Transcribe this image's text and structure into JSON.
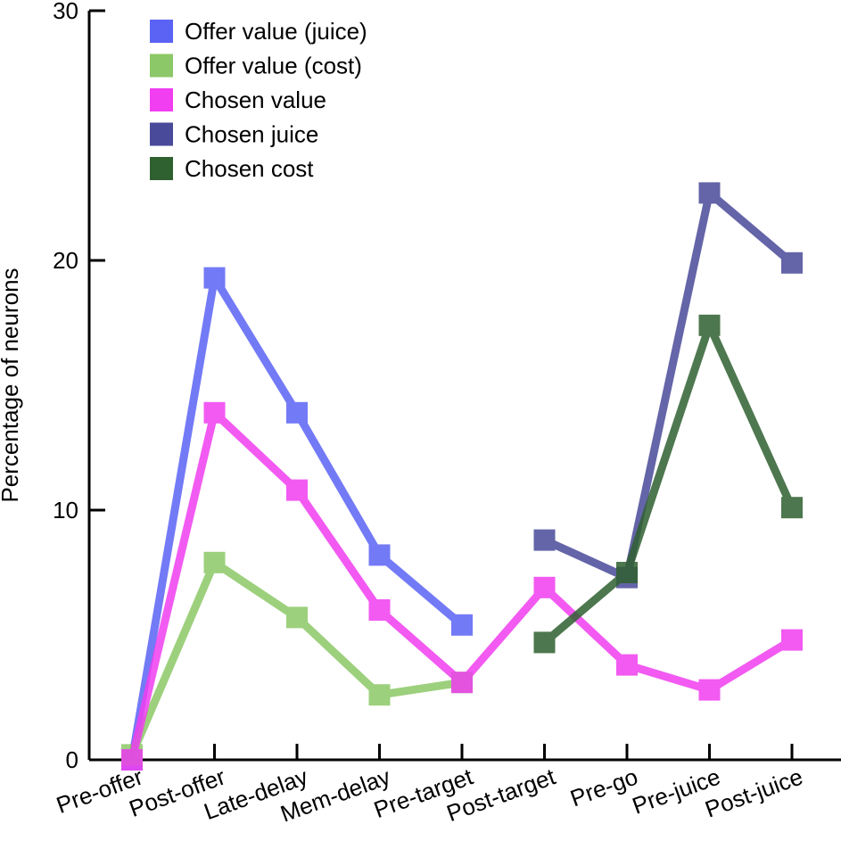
{
  "chart_data": {
    "type": "line",
    "title": "",
    "xlabel": "",
    "ylabel": "Percentage of neurons",
    "ylim": [
      0,
      30
    ],
    "yticks": [
      0,
      10,
      20,
      30
    ],
    "categories": [
      "Pre-offer",
      "Post-offer",
      "Late-delay",
      "Mem-delay",
      "Pre-target",
      "Post-target",
      "Pre-go",
      "Pre-juice",
      "Post-juice"
    ],
    "legend_position": "top-left",
    "series": [
      {
        "name": "Offer value (juice)",
        "color": "#5b63f5",
        "values": [
          0,
          19.3,
          13.9,
          8.2,
          5.4,
          null,
          null,
          null,
          null
        ]
      },
      {
        "name": "Offer value (cost)",
        "color": "#8cc867",
        "values": [
          0.2,
          7.9,
          5.7,
          2.6,
          3.1,
          null,
          null,
          null,
          null
        ]
      },
      {
        "name": "Chosen value",
        "color": "#f03ef0",
        "values": [
          0,
          13.9,
          10.8,
          6.0,
          3.1,
          6.9,
          3.8,
          2.8,
          4.8
        ]
      },
      {
        "name": "Chosen juice",
        "color": "#4a4a9a",
        "values": [
          null,
          null,
          null,
          null,
          null,
          8.8,
          7.3,
          22.7,
          19.9
        ]
      },
      {
        "name": "Chosen cost",
        "color": "#2f6030",
        "values": [
          null,
          null,
          null,
          null,
          null,
          4.7,
          7.5,
          17.4,
          10.1
        ]
      }
    ]
  }
}
